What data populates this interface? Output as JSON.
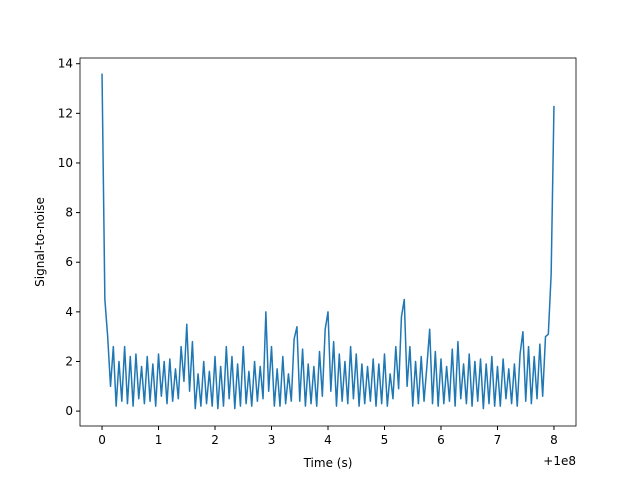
{
  "chart_data": {
    "type": "line",
    "x_label": "Time (s)",
    "y_label": "Signal-to-noise",
    "x_offset_label": "+1e8",
    "x": [
      0,
      0.05,
      0.1,
      0.15,
      0.2,
      0.25,
      0.3,
      0.35,
      0.4,
      0.45,
      0.5,
      0.55,
      0.6,
      0.65,
      0.7,
      0.75,
      0.8,
      0.85,
      0.9,
      0.95,
      1,
      1.05,
      1.1,
      1.15,
      1.2,
      1.25,
      1.3,
      1.35,
      1.4,
      1.45,
      1.5,
      1.55,
      1.6,
      1.65,
      1.7,
      1.75,
      1.8,
      1.85,
      1.9,
      1.95,
      2,
      2.05,
      2.1,
      2.15,
      2.2,
      2.25,
      2.3,
      2.35,
      2.4,
      2.45,
      2.5,
      2.55,
      2.6,
      2.65,
      2.7,
      2.75,
      2.8,
      2.85,
      2.9,
      2.95,
      3,
      3.05,
      3.1,
      3.15,
      3.2,
      3.25,
      3.3,
      3.35,
      3.4,
      3.45,
      3.5,
      3.55,
      3.6,
      3.65,
      3.7,
      3.75,
      3.8,
      3.85,
      3.9,
      3.95,
      4,
      4.05,
      4.1,
      4.15,
      4.2,
      4.25,
      4.3,
      4.35,
      4.4,
      4.45,
      4.5,
      4.55,
      4.6,
      4.65,
      4.7,
      4.75,
      4.8,
      4.85,
      4.9,
      4.95,
      5,
      5.05,
      5.1,
      5.15,
      5.2,
      5.25,
      5.3,
      5.35,
      5.4,
      5.45,
      5.5,
      5.55,
      5.6,
      5.65,
      5.7,
      5.75,
      5.8,
      5.85,
      5.9,
      5.95,
      6,
      6.05,
      6.1,
      6.15,
      6.2,
      6.25,
      6.3,
      6.35,
      6.4,
      6.45,
      6.5,
      6.55,
      6.6,
      6.65,
      6.7,
      6.75,
      6.8,
      6.85,
      6.9,
      6.95,
      7,
      7.05,
      7.1,
      7.15,
      7.2,
      7.25,
      7.3,
      7.35,
      7.4,
      7.45,
      7.5,
      7.55,
      7.6,
      7.65,
      7.7,
      7.75,
      7.8,
      7.85,
      7.9,
      7.95,
      8
    ],
    "series": [
      {
        "color": "#1f77b4",
        "values": [
          13.6,
          4.5,
          3.0,
          1.0,
          2.6,
          0.2,
          2.0,
          0.4,
          2.6,
          0.3,
          2.2,
          0.2,
          2.3,
          0.5,
          1.8,
          0.3,
          2.2,
          0.4,
          1.9,
          0.2,
          2.3,
          0.6,
          2.0,
          0.3,
          2.1,
          0.4,
          1.7,
          0.5,
          2.6,
          1.2,
          3.5,
          0.8,
          2.8,
          0.1,
          1.5,
          0.2,
          2.0,
          0.3,
          1.6,
          0.2,
          2.2,
          0.1,
          1.8,
          0.2,
          2.6,
          0.5,
          2.2,
          0.1,
          1.9,
          0.2,
          2.6,
          0.3,
          1.6,
          0.2,
          2.0,
          0.4,
          1.8,
          0.5,
          4.0,
          0.8,
          2.6,
          0.2,
          1.7,
          0.2,
          2.2,
          0.3,
          1.5,
          0.4,
          2.9,
          3.4,
          0.4,
          2.5,
          0.2,
          1.9,
          0.3,
          1.8,
          0.2,
          2.4,
          0.6,
          3.3,
          4.0,
          0.8,
          2.8,
          0.2,
          2.3,
          0.4,
          2.0,
          0.3,
          2.6,
          0.5,
          2.3,
          0.2,
          1.9,
          0.3,
          1.8,
          0.4,
          2.1,
          0.2,
          1.9,
          0.3,
          2.3,
          0.2,
          1.5,
          0.5,
          2.6,
          0.9,
          3.8,
          4.5,
          1.0,
          2.6,
          0.2,
          2.0,
          0.3,
          2.2,
          0.4,
          1.8,
          3.3,
          0.3,
          2.4,
          0.2,
          2.1,
          0.3,
          1.8,
          0.4,
          2.5,
          0.2,
          2.8,
          0.5,
          1.9,
          0.3,
          2.3,
          0.2,
          2.0,
          0.4,
          2.1,
          0.1,
          1.9,
          0.3,
          2.2,
          0.2,
          1.8,
          0.2,
          2.1,
          0.5,
          1.7,
          0.3,
          1.9,
          0.2,
          2.3,
          3.2,
          0.4,
          2.6,
          0.3,
          2.2,
          0.5,
          2.7,
          0.6,
          3.0,
          3.1,
          5.5,
          12.3
        ]
      }
    ],
    "xlim": [
      -0.39,
      8.39
    ],
    "ylim": [
      -0.6,
      14.23
    ],
    "xticks": [
      0,
      1,
      2,
      3,
      4,
      5,
      6,
      7,
      8
    ],
    "yticks": [
      0,
      2,
      4,
      6,
      8,
      10,
      12,
      14
    ]
  }
}
